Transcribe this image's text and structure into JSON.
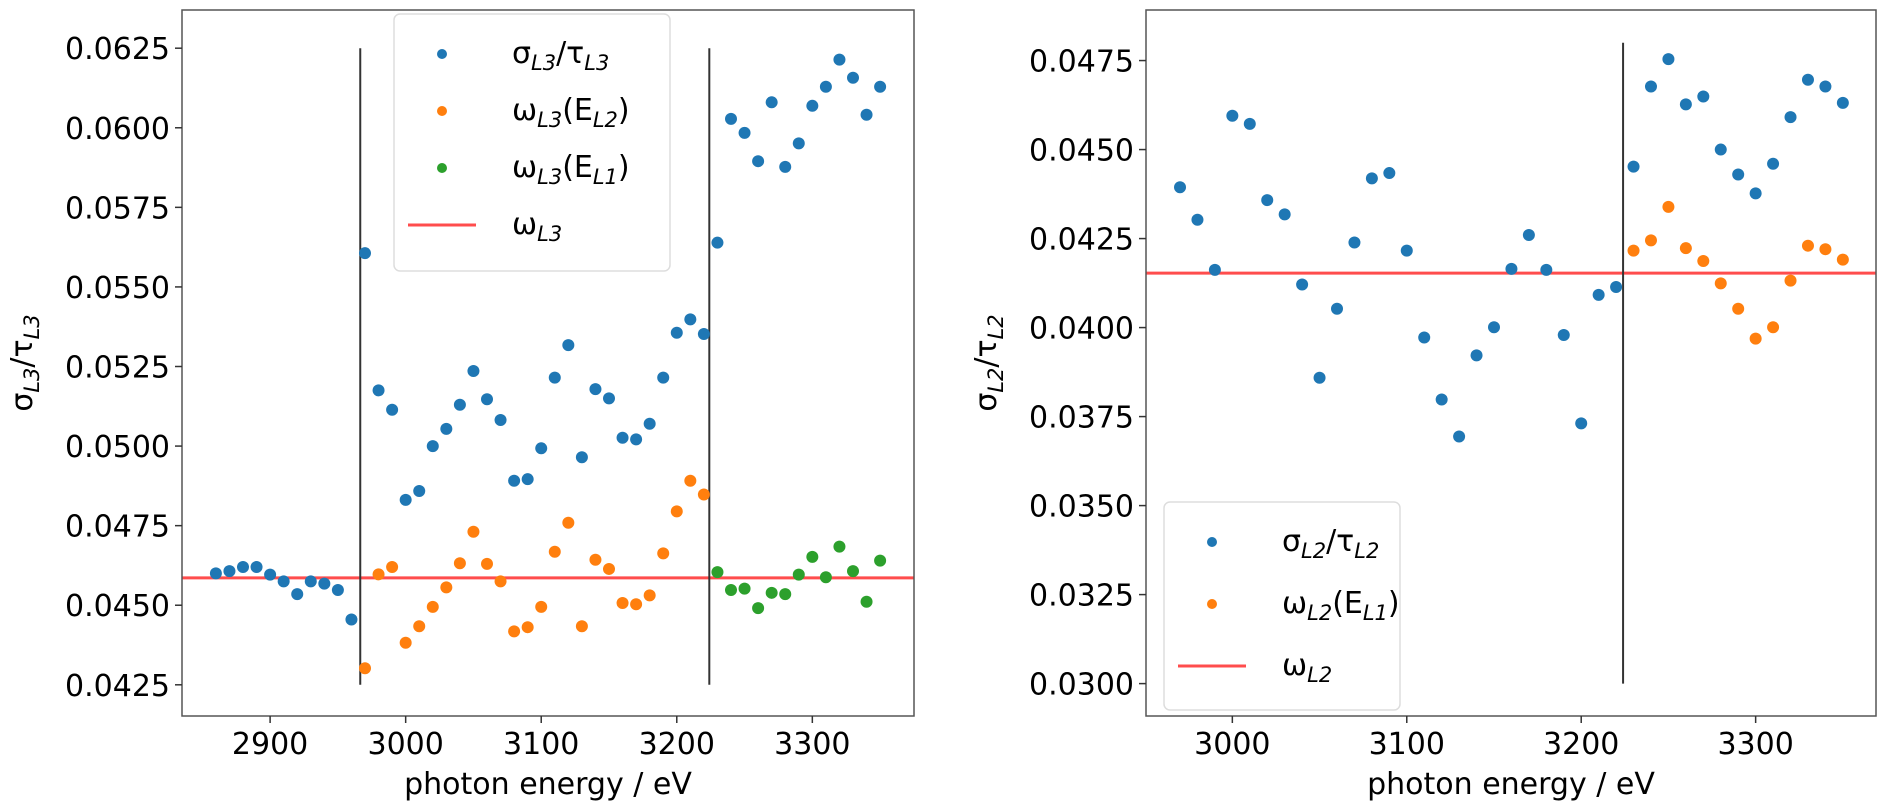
{
  "chart_data": [
    {
      "type": "scatter",
      "xlabel": "photon energy / eV",
      "ylabel": [
        [
          "σ",
          ""
        ],
        [
          "L3",
          "sub"
        ],
        [
          "/τ",
          ""
        ],
        [
          "L3",
          "sub"
        ]
      ],
      "xlim": [
        2835,
        3375
      ],
      "ylim": [
        0.04152,
        0.0637
      ],
      "xticks": [
        2900,
        3000,
        3100,
        3200,
        3300
      ],
      "yticks": [
        "0.0425",
        "0.0450",
        "0.0475",
        "0.0500",
        "0.0525",
        "0.0550",
        "0.0575",
        "0.0600",
        "0.0625"
      ],
      "grid": false,
      "legend_position": "top-center",
      "series": [
        {
          "label": [
            [
              "σ",
              ""
            ],
            [
              "L3",
              "sub"
            ],
            [
              "/τ",
              ""
            ],
            [
              "L3",
              "sub"
            ]
          ],
          "color": "#1f77b4",
          "kind": "points",
          "x": [
            2860,
            2870,
            2880,
            2890,
            2900,
            2910,
            2920,
            2930,
            2940,
            2950,
            2960,
            2970,
            2980,
            2990,
            3000,
            3010,
            3020,
            3030,
            3040,
            3050,
            3060,
            3070,
            3080,
            3090,
            3100,
            3110,
            3120,
            3130,
            3140,
            3150,
            3160,
            3170,
            3180,
            3190,
            3200,
            3210,
            3220,
            3230,
            3240,
            3250,
            3260,
            3270,
            3280,
            3290,
            3300,
            3310,
            3320,
            3330,
            3340,
            3350
          ],
          "y": [
            0.046,
            0.04607,
            0.0462,
            0.0462,
            0.04596,
            0.04575,
            0.04535,
            0.04575,
            0.04568,
            0.04548,
            0.04455,
            0.05606,
            0.05175,
            0.05114,
            0.04831,
            0.04859,
            0.05,
            0.05054,
            0.0513,
            0.05236,
            0.05147,
            0.05082,
            0.04891,
            0.04896,
            0.04993,
            0.05215,
            0.05317,
            0.04965,
            0.05179,
            0.0515,
            0.05026,
            0.05021,
            0.0507,
            0.05215,
            0.05356,
            0.05398,
            0.05352,
            0.05639,
            0.06028,
            0.05984,
            0.05895,
            0.0608,
            0.05877,
            0.05951,
            0.06069,
            0.06129,
            0.06214,
            0.06157,
            0.06041,
            0.06129
          ]
        },
        {
          "label": [
            [
              "ω",
              ""
            ],
            [
              "L3",
              "sub"
            ],
            [
              "(E",
              ""
            ],
            [
              "L2",
              "sub"
            ],
            [
              ")",
              ""
            ]
          ],
          "color": "#ff7f0e",
          "kind": "points",
          "x": [
            2970,
            2980,
            2990,
            3000,
            3010,
            3020,
            3030,
            3040,
            3050,
            3060,
            3070,
            3080,
            3090,
            3100,
            3110,
            3120,
            3130,
            3140,
            3150,
            3160,
            3170,
            3180,
            3190,
            3200,
            3210,
            3220
          ],
          "y": [
            0.04302,
            0.04597,
            0.0462,
            0.04382,
            0.04434,
            0.04495,
            0.04556,
            0.04632,
            0.04731,
            0.0463,
            0.04575,
            0.04418,
            0.04431,
            0.04495,
            0.04668,
            0.04759,
            0.04434,
            0.04643,
            0.04614,
            0.04507,
            0.04503,
            0.04531,
            0.04663,
            0.04795,
            0.04891,
            0.04848
          ]
        },
        {
          "label": [
            [
              "ω",
              ""
            ],
            [
              "L3",
              "sub"
            ],
            [
              "(E",
              ""
            ],
            [
              "L1",
              "sub"
            ],
            [
              ")",
              ""
            ]
          ],
          "color": "#2ca02c",
          "kind": "points",
          "x": [
            3230,
            3240,
            3250,
            3260,
            3270,
            3280,
            3290,
            3300,
            3310,
            3320,
            3330,
            3340,
            3350
          ],
          "y": [
            0.04604,
            0.04548,
            0.04552,
            0.04491,
            0.04539,
            0.04535,
            0.04596,
            0.04652,
            0.04588,
            0.04684,
            0.04607,
            0.04511,
            0.0464
          ]
        },
        {
          "label": [
            [
              "ω",
              ""
            ],
            [
              "L3",
              "sub"
            ]
          ],
          "color": "#ff4d4d",
          "kind": "hline",
          "y": 0.04586
        }
      ],
      "vlines": [
        {
          "x": 2966.5,
          "y": [
            0.0425,
            0.0625
          ],
          "color": "#333333"
        },
        {
          "x": 3224,
          "y": [
            0.0425,
            0.0625
          ],
          "color": "#333333"
        }
      ]
    },
    {
      "type": "scatter",
      "xlabel": "photon energy / eV",
      "ylabel": [
        [
          "σ",
          ""
        ],
        [
          "L2",
          "sub"
        ],
        [
          "/τ",
          ""
        ],
        [
          "L2",
          "sub"
        ]
      ],
      "xlim": [
        2950.5,
        3369
      ],
      "ylim": [
        0.02909,
        0.04892
      ],
      "xticks": [
        3000,
        3100,
        3200,
        3300
      ],
      "yticks": [
        "0.0300",
        "0.0325",
        "0.0350",
        "0.0375",
        "0.0400",
        "0.0425",
        "0.0450",
        "0.0475"
      ],
      "grid": false,
      "legend_position": "lower-left",
      "series": [
        {
          "label": [
            [
              "σ",
              ""
            ],
            [
              "L2",
              "sub"
            ],
            [
              "/τ",
              ""
            ],
            [
              "L2",
              "sub"
            ]
          ],
          "color": "#1f77b4",
          "kind": "points",
          "x": [
            2970,
            2980,
            2990,
            3000,
            3010,
            3020,
            3030,
            3040,
            3050,
            3060,
            3070,
            3080,
            3090,
            3100,
            3110,
            3120,
            3130,
            3140,
            3150,
            3160,
            3170,
            3180,
            3190,
            3200,
            3210,
            3220,
            3230,
            3240,
            3250,
            3260,
            3270,
            3280,
            3290,
            3300,
            3310,
            3320,
            3330,
            3340,
            3350
          ],
          "y": [
            0.04394,
            0.04303,
            0.04162,
            0.04595,
            0.04572,
            0.04358,
            0.04318,
            0.04121,
            0.03859,
            0.04053,
            0.04239,
            0.04419,
            0.04434,
            0.04216,
            0.03972,
            0.03798,
            0.03694,
            0.03922,
            0.04001,
            0.04165,
            0.0426,
            0.04162,
            0.03979,
            0.03731,
            0.04092,
            0.04114,
            0.04452,
            0.04677,
            0.04754,
            0.04627,
            0.04649,
            0.045,
            0.0443,
            0.04377,
            0.0446,
            0.04591,
            0.04696,
            0.04677,
            0.04631
          ]
        },
        {
          "label": [
            [
              "ω",
              ""
            ],
            [
              "L2",
              "sub"
            ],
            [
              "(E",
              ""
            ],
            [
              "L1",
              "sub"
            ],
            [
              ")",
              ""
            ]
          ],
          "color": "#ff7f0e",
          "kind": "points",
          "x": [
            3230,
            3240,
            3250,
            3260,
            3270,
            3280,
            3290,
            3300,
            3310,
            3320,
            3330,
            3340,
            3350
          ],
          "y": [
            0.04216,
            0.04245,
            0.04339,
            0.04223,
            0.04187,
            0.04124,
            0.04053,
            0.03969,
            0.04001,
            0.04132,
            0.0423,
            0.0422,
            0.04191
          ]
        },
        {
          "label": [
            [
              "ω",
              ""
            ],
            [
              "L2",
              "sub"
            ]
          ],
          "color": "#ff4d4d",
          "kind": "hline",
          "y": 0.04153
        }
      ],
      "vlines": [
        {
          "x": 3224,
          "y": [
            0.03,
            0.048
          ],
          "color": "#333333"
        }
      ]
    }
  ]
}
